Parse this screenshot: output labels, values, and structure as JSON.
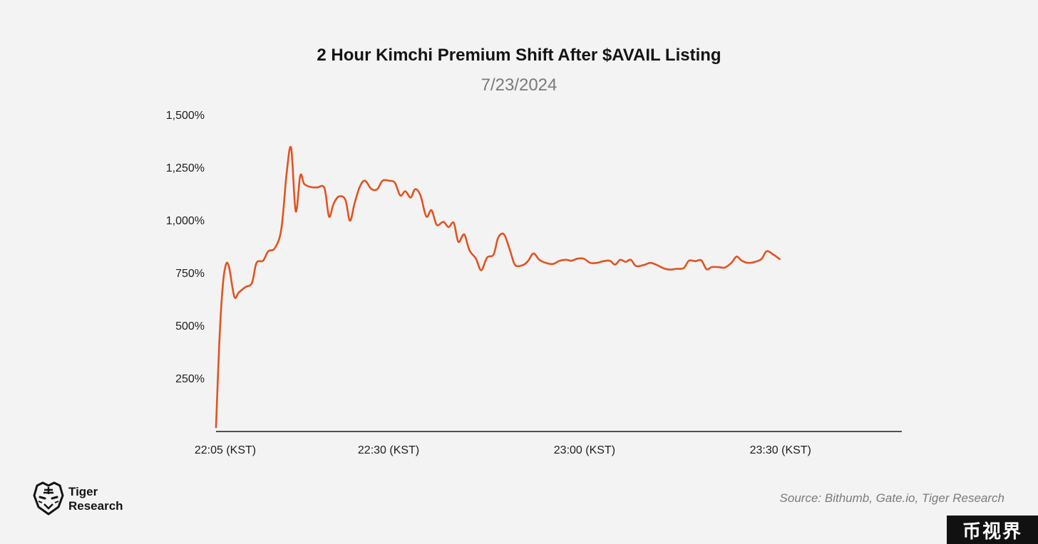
{
  "chart_data": {
    "type": "line",
    "title": "2 Hour Kimchi Premium Shift After $AVAIL Listing",
    "subtitle": "7/23/2024",
    "xlabel": "",
    "ylabel": "",
    "x_ticks": [
      {
        "minute": 0,
        "label": "22:05 (KST)"
      },
      {
        "minute": 25,
        "label": "22:30 (KST)"
      },
      {
        "minute": 55,
        "label": "23:00 (KST)"
      },
      {
        "minute": 85,
        "label": "23:30 (KST)"
      }
    ],
    "y_ticks": [
      {
        "value": 250,
        "label": "250%"
      },
      {
        "value": 500,
        "label": "500%"
      },
      {
        "value": 750,
        "label": "750%"
      },
      {
        "value": 1000,
        "label": "1,000%"
      },
      {
        "value": 1250,
        "label": "1,250%"
      },
      {
        "value": 1500,
        "label": "1,500%"
      }
    ],
    "xlim": [
      0,
      105
    ],
    "ylim": [
      0,
      1500
    ],
    "grid": false,
    "line_color": "#e2531f",
    "series": [
      {
        "name": "",
        "points": [
          [
            0,
            20
          ],
          [
            0.5,
            420
          ],
          [
            1.0,
            680
          ],
          [
            1.5,
            790
          ],
          [
            2.0,
            780
          ],
          [
            2.8,
            640
          ],
          [
            3.5,
            660
          ],
          [
            4.5,
            685
          ],
          [
            5.5,
            705
          ],
          [
            6.2,
            800
          ],
          [
            7.2,
            810
          ],
          [
            8.0,
            855
          ],
          [
            9.0,
            870
          ],
          [
            10.0,
            960
          ],
          [
            10.8,
            1220
          ],
          [
            11.5,
            1345
          ],
          [
            12.2,
            1045
          ],
          [
            12.9,
            1215
          ],
          [
            13.5,
            1175
          ],
          [
            14.5,
            1160
          ],
          [
            15.5,
            1158
          ],
          [
            16.6,
            1155
          ],
          [
            17.3,
            1020
          ],
          [
            18.0,
            1080
          ],
          [
            18.8,
            1115
          ],
          [
            19.8,
            1100
          ],
          [
            20.5,
            1000
          ],
          [
            21.2,
            1080
          ],
          [
            22.0,
            1160
          ],
          [
            22.8,
            1190
          ],
          [
            23.8,
            1150
          ],
          [
            24.7,
            1150
          ],
          [
            25.5,
            1190
          ],
          [
            26.5,
            1190
          ],
          [
            27.4,
            1180
          ],
          [
            28.2,
            1120
          ],
          [
            29.0,
            1140
          ],
          [
            29.8,
            1110
          ],
          [
            30.5,
            1150
          ],
          [
            31.3,
            1120
          ],
          [
            32.2,
            1020
          ],
          [
            33.0,
            1050
          ],
          [
            33.8,
            980
          ],
          [
            34.8,
            995
          ],
          [
            35.6,
            970
          ],
          [
            36.4,
            990
          ],
          [
            37.1,
            900
          ],
          [
            38.0,
            935
          ],
          [
            38.8,
            860
          ],
          [
            39.8,
            820
          ],
          [
            40.6,
            765
          ],
          [
            41.5,
            825
          ],
          [
            42.5,
            840
          ],
          [
            43.2,
            920
          ],
          [
            44.1,
            935
          ],
          [
            45.0,
            860
          ],
          [
            45.8,
            790
          ],
          [
            47.0,
            790
          ],
          [
            47.8,
            810
          ],
          [
            48.6,
            845
          ],
          [
            49.5,
            815
          ],
          [
            50.5,
            800
          ],
          [
            51.6,
            795
          ],
          [
            52.6,
            810
          ],
          [
            53.6,
            815
          ],
          [
            54.4,
            810
          ],
          [
            55.3,
            820
          ],
          [
            56.3,
            820
          ],
          [
            57.3,
            800
          ],
          [
            58.3,
            800
          ],
          [
            59.3,
            808
          ],
          [
            60.3,
            810
          ],
          [
            61.1,
            792
          ],
          [
            61.9,
            815
          ],
          [
            62.7,
            805
          ],
          [
            63.5,
            815
          ],
          [
            64.3,
            785
          ],
          [
            65.5,
            790
          ],
          [
            66.5,
            800
          ],
          [
            67.5,
            790
          ],
          [
            68.5,
            775
          ],
          [
            69.5,
            768
          ],
          [
            70.5,
            772
          ],
          [
            71.6,
            775
          ],
          [
            72.4,
            810
          ],
          [
            73.4,
            808
          ],
          [
            74.3,
            812
          ],
          [
            75.1,
            770
          ],
          [
            75.9,
            780
          ],
          [
            76.9,
            780
          ],
          [
            77.9,
            778
          ],
          [
            78.9,
            800
          ],
          [
            79.7,
            830
          ],
          [
            80.5,
            810
          ],
          [
            81.5,
            800
          ],
          [
            82.5,
            805
          ],
          [
            83.5,
            818
          ],
          [
            84.3,
            855
          ],
          [
            85.3,
            840
          ],
          [
            86.3,
            818
          ]
        ]
      }
    ]
  },
  "source": "Source: Bithumb, Gate.io, Tiger Research",
  "logo": {
    "line1": "Tiger",
    "line2": "Research",
    "icon": "tiger-head-icon"
  },
  "watermark": "币视界"
}
